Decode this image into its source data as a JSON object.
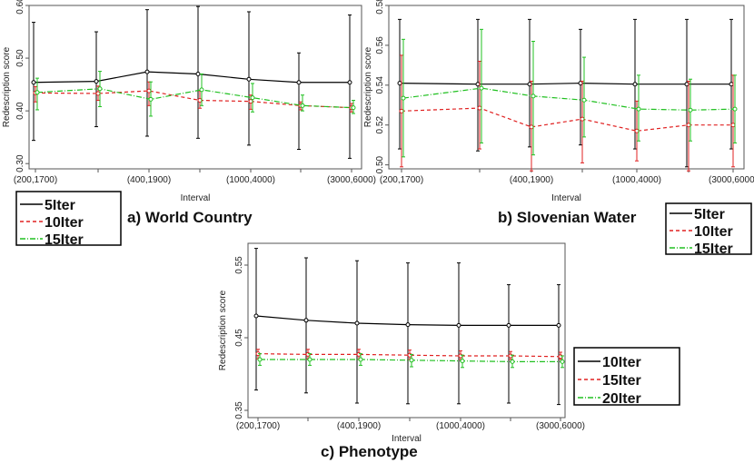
{
  "chart_data": [
    {
      "type": "line",
      "title": "",
      "caption": "a) World Country",
      "xlabel": "Interval",
      "ylabel": "Redescription score",
      "categories": [
        "(200,1700)",
        "",
        "(400,1900)",
        "",
        "(1000,4000)",
        "",
        "(3000,6000)"
      ],
      "ylim": [
        0.29,
        0.6
      ],
      "yticks": [
        0.3,
        0.4,
        0.5,
        0.6
      ],
      "ytick_labels": [
        "0.30",
        "0.40",
        "0.50",
        "0.60"
      ],
      "series": [
        {
          "name": "5Iter",
          "color": "#000000",
          "dash": "",
          "values": [
            0.454,
            0.456,
            0.474,
            0.47,
            0.46,
            0.454,
            0.454
          ],
          "err_low": [
            0.344,
            0.37,
            0.352,
            0.348,
            0.335,
            0.327,
            0.31
          ],
          "err_high": [
            0.568,
            0.55,
            0.592,
            0.598,
            0.588,
            0.51,
            0.582
          ]
        },
        {
          "name": "10Iter",
          "color": "#e02020",
          "dash": "4,3",
          "values": [
            0.434,
            0.433,
            0.438,
            0.42,
            0.418,
            0.41,
            0.406
          ],
          "err_low": [
            0.417,
            0.42,
            0.41,
            0.405,
            0.403,
            0.402,
            0.398
          ],
          "err_high": [
            0.446,
            0.447,
            0.455,
            0.438,
            0.43,
            0.417,
            0.414
          ]
        },
        {
          "name": "15Iter",
          "color": "#20c020",
          "dash": "6,2,1,2",
          "values": [
            0.435,
            0.442,
            0.422,
            0.44,
            0.425,
            0.41,
            0.406
          ],
          "err_low": [
            0.402,
            0.408,
            0.39,
            0.41,
            0.398,
            0.4,
            0.395
          ],
          "err_high": [
            0.462,
            0.475,
            0.455,
            0.47,
            0.452,
            0.43,
            0.42
          ]
        }
      ]
    },
    {
      "type": "line",
      "title": "",
      "caption": "b) Slovenian Water",
      "xlabel": "Interval",
      "ylabel": "Redescription score",
      "categories": [
        "(200,1700)",
        "",
        "(400,1900)",
        "",
        "(1000,4000)",
        "",
        "(3000,6000)"
      ],
      "ylim": [
        0.498,
        0.58
      ],
      "yticks": [
        0.5,
        0.52,
        0.54,
        0.56,
        0.58
      ],
      "ytick_labels": [
        "0.50",
        "0.52",
        "0.54",
        "0.56",
        "0.58"
      ],
      "series": [
        {
          "name": "5Iter",
          "color": "#000000",
          "dash": "",
          "values": [
            0.541,
            0.5405,
            0.5405,
            0.541,
            0.5405,
            0.5405,
            0.5405
          ],
          "err_low": [
            0.508,
            0.507,
            0.509,
            0.51,
            0.508,
            0.499,
            0.508
          ],
          "err_high": [
            0.573,
            0.573,
            0.573,
            0.568,
            0.573,
            0.573,
            0.573
          ]
        },
        {
          "name": "10Iter",
          "color": "#e02020",
          "dash": "4,3",
          "values": [
            0.527,
            0.5285,
            0.519,
            0.523,
            0.517,
            0.52,
            0.52
          ],
          "err_low": [
            0.499,
            0.508,
            0.497,
            0.501,
            0.502,
            0.497,
            0.499
          ],
          "err_high": [
            0.555,
            0.552,
            0.542,
            0.542,
            0.532,
            0.542,
            0.545
          ]
        },
        {
          "name": "15Iter",
          "color": "#20c020",
          "dash": "6,2,1,2",
          "values": [
            0.5335,
            0.5385,
            0.5345,
            0.5325,
            0.528,
            0.5275,
            0.528
          ],
          "err_low": [
            0.504,
            0.511,
            0.505,
            0.514,
            0.512,
            0.512,
            0.511
          ],
          "err_high": [
            0.563,
            0.568,
            0.562,
            0.554,
            0.545,
            0.543,
            0.545
          ]
        }
      ]
    },
    {
      "type": "line",
      "title": "",
      "caption": "c) Phenotype",
      "xlabel": "Interval",
      "ylabel": "Redescription score",
      "categories": [
        "(200,1700)",
        "",
        "(400,1900)",
        "",
        "(1000,4000)",
        "",
        "(3000,6000)"
      ],
      "ylim": [
        0.34,
        0.58
      ],
      "yticks": [
        0.35,
        0.45,
        0.55
      ],
      "ytick_labels": [
        "0.35",
        "0.45",
        "0.55"
      ],
      "series": [
        {
          "name": "10Iter",
          "color": "#000000",
          "dash": "",
          "values": [
            0.48,
            0.474,
            0.47,
            0.468,
            0.467,
            0.467,
            0.467
          ],
          "err_low": [
            0.378,
            0.374,
            0.36,
            0.359,
            0.359,
            0.36,
            0.358
          ],
          "err_high": [
            0.573,
            0.56,
            0.556,
            0.553,
            0.553,
            0.523,
            0.523
          ]
        },
        {
          "name": "15Iter",
          "color": "#e02020",
          "dash": "4,3",
          "values": [
            0.428,
            0.427,
            0.427,
            0.426,
            0.425,
            0.425,
            0.424
          ],
          "err_low": [
            0.421,
            0.421,
            0.42,
            0.42,
            0.42,
            0.42,
            0.42
          ],
          "err_high": [
            0.434,
            0.434,
            0.434,
            0.433,
            0.432,
            0.431,
            0.43
          ]
        },
        {
          "name": "20Iter",
          "color": "#20c020",
          "dash": "6,2,1,2",
          "values": [
            0.42,
            0.42,
            0.42,
            0.419,
            0.418,
            0.417,
            0.417
          ],
          "err_low": [
            0.412,
            0.412,
            0.412,
            0.41,
            0.409,
            0.409,
            0.409
          ],
          "err_high": [
            0.428,
            0.428,
            0.428,
            0.427,
            0.426,
            0.426,
            0.425
          ]
        }
      ]
    }
  ]
}
